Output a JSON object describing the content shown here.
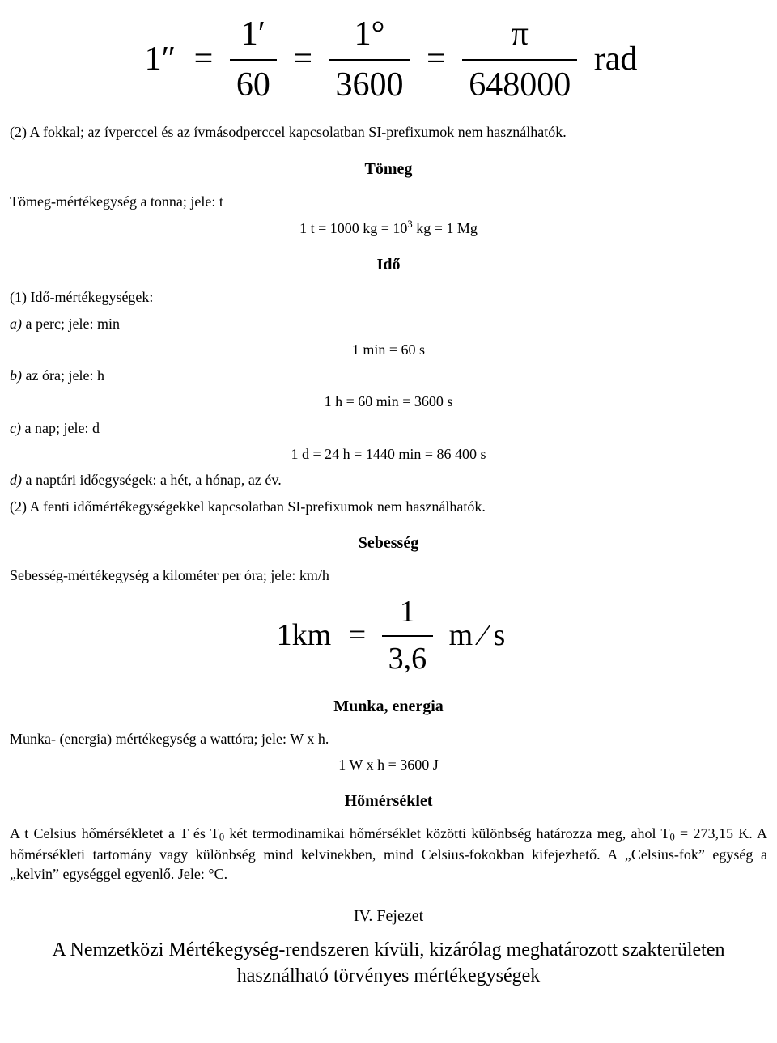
{
  "formula1": {
    "lhs": "1″",
    "f1_num": "1′",
    "f1_den": "60",
    "f2_num": "1°",
    "f2_den": "3600",
    "f3_num": "π",
    "f3_den": "648000",
    "unit": "rad"
  },
  "para_fokkal": "(2) A fokkal; az ívperccel és az ívmásodperccel kapcsolatban SI-prefixumok nem használhatók.",
  "tomeg": {
    "title": "Tömeg",
    "line1": "Tömeg-mértékegység a tonna; jele: t",
    "eq_prefix": "1 t = 1000 kg = 10",
    "eq_exp": "3",
    "eq_suffix": " kg = 1 Mg"
  },
  "ido": {
    "title": "Idő",
    "l1": "(1) Idő-mértékegységek:",
    "a_label": "a)",
    "a_text": " a perc; jele: min",
    "a_eq": "1 min = 60 s",
    "b_label": "b)",
    "b_text": " az óra; jele: h",
    "b_eq": "1 h = 60 min = 3600 s",
    "c_label": "c)",
    "c_text": " a nap; jele: d",
    "c_eq": "1 d = 24 h = 1440 min = 86 400 s",
    "d_label": "d)",
    "d_text": " a naptári időegységek: a hét, a hónap, az év.",
    "l2": "(2) A fenti időmértékegységekkel kapcsolatban SI-prefixumok nem használhatók."
  },
  "sebesseg": {
    "title": "Sebesség",
    "line": "Sebesség-mértékegység a kilométer per óra; jele: km/h",
    "formula_lhs": "1km",
    "formula_num": "1",
    "formula_den": "3,6",
    "formula_unit": "m ⁄ s"
  },
  "munka": {
    "title": "Munka, energia",
    "line": "Munka- (energia) mértékegység a wattóra; jele: W x h.",
    "eq": "1 W x h = 3600 J"
  },
  "homerseklet": {
    "title": "Hőmérséklet",
    "p1a": "A t Celsius hőmérsékletet a T és T",
    "p1b": " két termodinamikai hőmérséklet közötti különbség határozza meg, ahol T",
    "p1c": " = 273,15 K. A hőmérsékleti tartomány vagy különbség mind kelvinekben, mind Celsius-fokokban kifejezhető. A „Celsius-fok” egység a „kelvin” egységgel egyenlő. Jele: °C.",
    "sub": "0"
  },
  "chapter": {
    "num": "IV. Fejezet",
    "title": "A Nemzetközi Mértékegység-rendszeren kívüli, kizárólag meghatározott szakterületen használható törvényes mértékegységek"
  }
}
